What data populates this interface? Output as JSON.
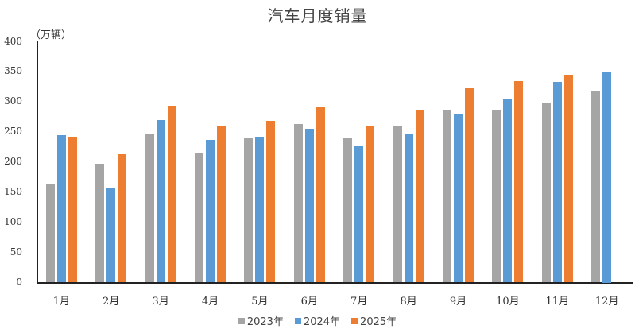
{
  "chart_data": {
    "type": "bar",
    "title": "汽车月度销量",
    "ylabel": "（万辆）",
    "xlabel": "",
    "ylim": [
      0,
      400
    ],
    "yticks": [
      0,
      50,
      100,
      150,
      200,
      250,
      300,
      350,
      400
    ],
    "grid": false,
    "legend_position": "bottom",
    "categories": [
      "1月",
      "2月",
      "3月",
      "4月",
      "5月",
      "6月",
      "7月",
      "8月",
      "9月",
      "10月",
      "11月",
      "12月"
    ],
    "series": [
      {
        "name": "2023年",
        "color": "#A5A5A5",
        "values": [
          164,
          197,
          246,
          216,
          239,
          263,
          239,
          259,
          287,
          287,
          298,
          317
        ]
      },
      {
        "name": "2024年",
        "color": "#5B9BD5",
        "values": [
          245,
          158,
          270,
          237,
          242,
          255,
          226,
          246,
          281,
          306,
          333,
          350
        ]
      },
      {
        "name": "2025年",
        "color": "#ED7D31",
        "values": [
          242,
          213,
          292,
          260,
          269,
          291,
          260,
          286,
          323,
          334,
          344,
          null
        ]
      }
    ]
  }
}
